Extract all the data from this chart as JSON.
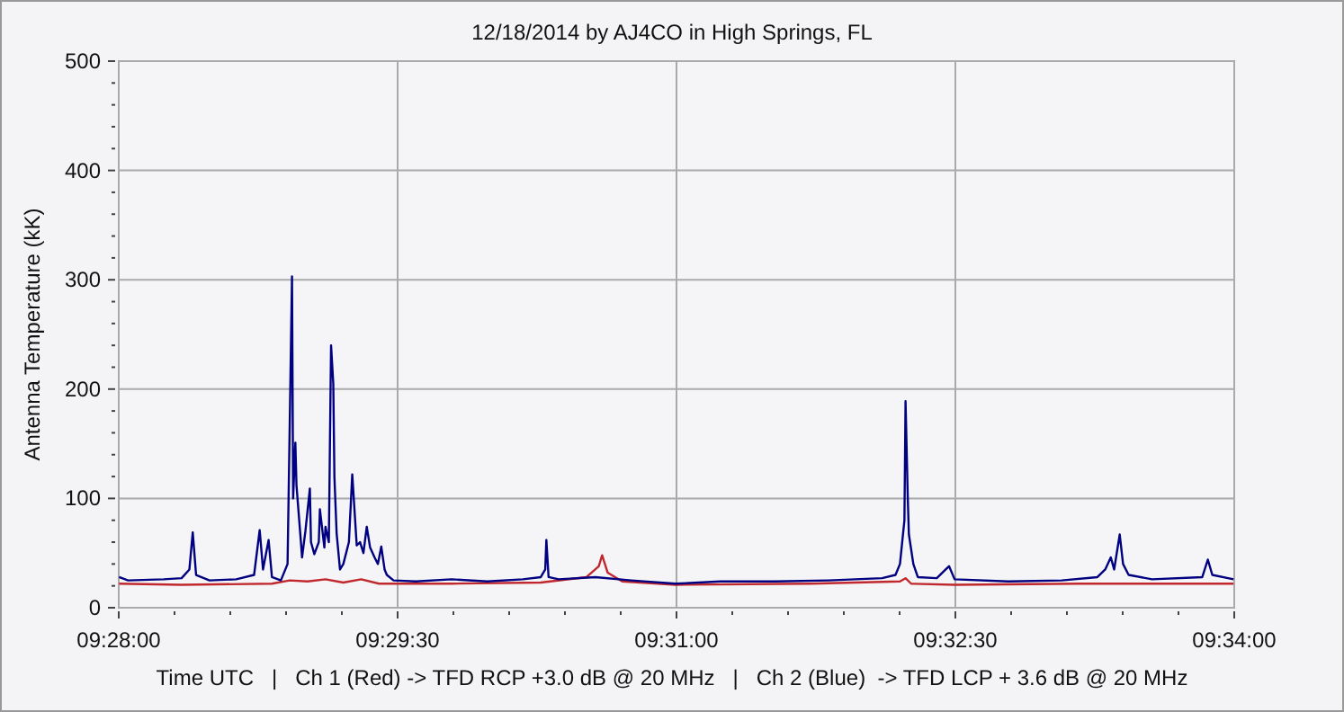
{
  "chart_data": {
    "type": "line",
    "title": "12/18/2014 by AJ4CO in High Springs, FL",
    "xlabel": "Time UTC   |   Ch 1 (Red) -> TFD RCP +3.0 dB @ 20 MHz   |   Ch 2 (Blue)  -> TFD LCP + 3.6 dB @ 20 MHz",
    "ylabel": "Antenna Temperature (kK)",
    "xlim": [
      9.466667,
      9.566667
    ],
    "xticks": [
      {
        "value": 9.466667,
        "label": "09:28:00"
      },
      {
        "value": 9.471667,
        "label": null
      },
      {
        "value": 9.476667,
        "label": null
      },
      {
        "value": 9.481667,
        "label": null
      },
      {
        "value": 9.486667,
        "label": null
      },
      {
        "value": 9.491667,
        "label": "09:29:30"
      },
      {
        "value": 9.496667,
        "label": null
      },
      {
        "value": 9.501667,
        "label": null
      },
      {
        "value": 9.506667,
        "label": null
      },
      {
        "value": 9.511667,
        "label": null
      },
      {
        "value": 9.516667,
        "label": "09:31:00"
      },
      {
        "value": 9.521667,
        "label": null
      },
      {
        "value": 9.526667,
        "label": null
      },
      {
        "value": 9.531667,
        "label": null
      },
      {
        "value": 9.536667,
        "label": null
      },
      {
        "value": 9.541667,
        "label": "09:32:30"
      },
      {
        "value": 9.546667,
        "label": null
      },
      {
        "value": 9.551667,
        "label": null
      },
      {
        "value": 9.556667,
        "label": null
      },
      {
        "value": 9.561667,
        "label": null
      },
      {
        "value": 9.566667,
        "label": "09:34:00"
      }
    ],
    "ylim": [
      0,
      500
    ],
    "yticks": [
      0,
      {
        "value": 20,
        "label": null
      },
      {
        "value": 40,
        "label": null
      },
      {
        "value": 60,
        "label": null
      },
      {
        "value": 80,
        "label": null
      },
      100,
      {
        "value": 120,
        "label": null
      },
      {
        "value": 140,
        "label": null
      },
      {
        "value": 160,
        "label": null
      },
      {
        "value": 180,
        "label": null
      },
      200,
      {
        "value": 220,
        "label": null
      },
      {
        "value": 240,
        "label": null
      },
      {
        "value": 260,
        "label": null
      },
      {
        "value": 280,
        "label": null
      },
      300,
      {
        "value": 320,
        "label": null
      },
      {
        "value": 340,
        "label": null
      },
      {
        "value": 360,
        "label": null
      },
      {
        "value": 380,
        "label": null
      },
      400,
      {
        "value": 420,
        "label": null
      },
      {
        "value": 440,
        "label": null
      },
      {
        "value": 460,
        "label": null
      },
      {
        "value": 480,
        "label": null
      },
      500
    ],
    "grid": true,
    "series": [
      {
        "color": "#c0282d",
        "x": [
          9.4667,
          9.4723,
          9.4804,
          9.482,
          9.4836,
          9.4852,
          9.4868,
          9.4884,
          9.49,
          9.4965,
          9.5045,
          9.5086,
          9.5097,
          9.51,
          9.5105,
          9.5118,
          9.5166,
          9.5287,
          9.5367,
          9.5372,
          9.5377,
          9.5416,
          9.5528,
          9.5666
        ],
        "values": [
          22,
          21,
          22,
          25,
          24,
          26,
          23,
          26,
          22,
          22,
          23,
          28,
          38,
          48,
          32,
          24,
          21,
          22,
          24,
          27,
          22,
          21,
          22,
          22
        ]
      },
      {
        "color": "#000080",
        "x": [
          9.4667,
          9.4675,
          9.4707,
          9.4723,
          9.473,
          9.4733,
          9.4736,
          9.4748,
          9.4772,
          9.4788,
          9.4793,
          9.4796,
          9.4801,
          9.4804,
          9.4812,
          9.4818,
          9.4822,
          9.4823,
          9.4825,
          9.4826,
          9.483,
          9.4831,
          9.4834,
          9.4838,
          9.4839,
          9.4842,
          9.4846,
          9.4847,
          9.4851,
          9.4852,
          9.4855,
          9.4857,
          9.4859,
          9.486,
          9.4862,
          9.4865,
          9.4868,
          9.4873,
          9.4876,
          9.488,
          9.4883,
          9.4886,
          9.4889,
          9.4892,
          9.4896,
          9.4899,
          9.4902,
          9.4905,
          9.4907,
          9.4913,
          9.4933,
          9.4965,
          9.4997,
          9.5029,
          9.5045,
          9.5049,
          9.505,
          9.5052,
          9.5061,
          9.5094,
          9.5126,
          9.5166,
          9.5206,
          9.5255,
          9.5303,
          9.5351,
          9.5363,
          9.5367,
          9.5371,
          9.5372,
          9.5374,
          9.5375,
          9.5379,
          9.5383,
          9.54,
          9.5408,
          9.5411,
          9.5416,
          9.5464,
          9.5512,
          9.5544,
          9.5551,
          9.5556,
          9.5559,
          9.5564,
          9.5567,
          9.5572,
          9.5593,
          9.5638,
          9.5643,
          9.5647,
          9.5666
        ],
        "values": [
          28,
          25,
          26,
          27,
          35,
          69,
          30,
          25,
          26,
          30,
          71,
          35,
          62,
          28,
          25,
          40,
          303,
          100,
          151,
          112,
          60,
          46,
          70,
          109,
          60,
          49,
          60,
          90,
          55,
          74,
          60,
          240,
          205,
          120,
          68,
          35,
          40,
          60,
          122,
          57,
          60,
          50,
          74,
          55,
          46,
          40,
          56,
          35,
          30,
          25,
          24,
          26,
          24,
          26,
          28,
          35,
          62,
          28,
          26,
          28,
          25,
          22,
          24,
          24,
          25,
          27,
          30,
          40,
          80,
          189,
          100,
          67,
          40,
          28,
          27,
          35,
          38,
          26,
          24,
          25,
          28,
          35,
          46,
          35,
          67,
          40,
          30,
          26,
          28,
          44,
          30,
          26
        ]
      }
    ]
  }
}
